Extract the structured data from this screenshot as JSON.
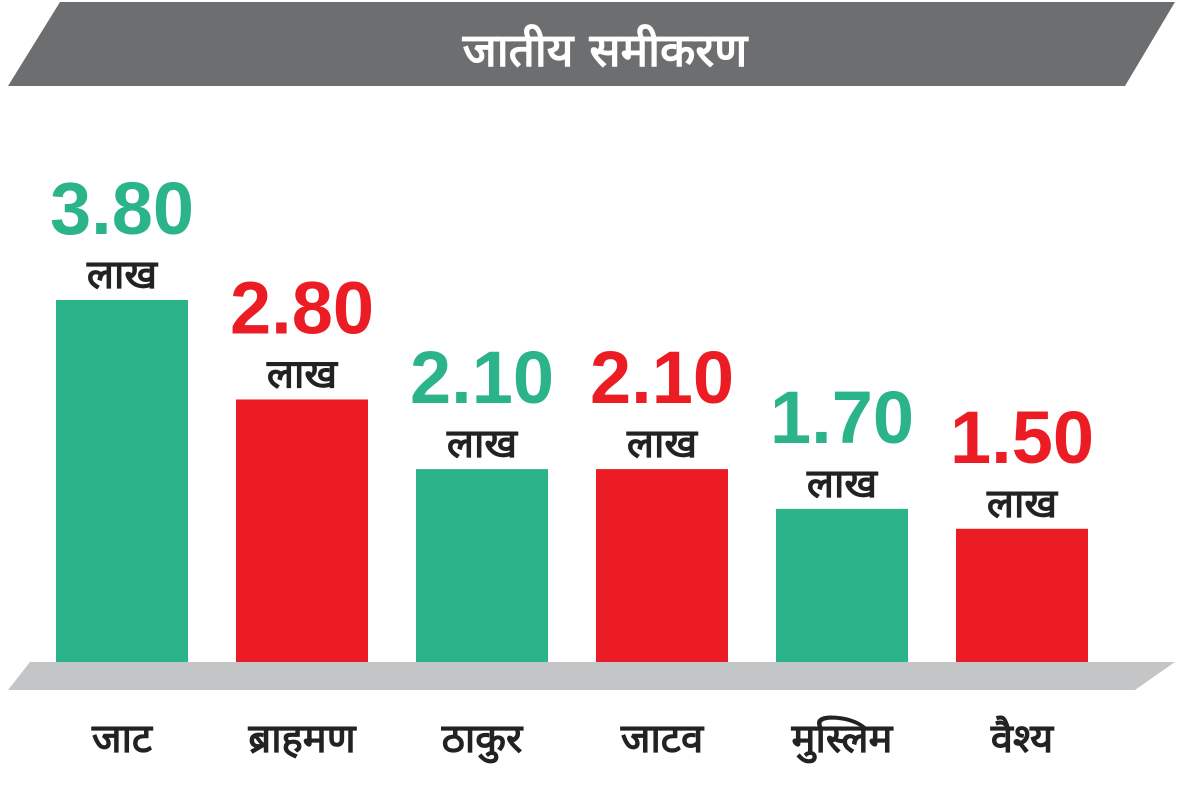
{
  "chart_data": {
    "type": "bar",
    "title": "जातीय समीकरण",
    "categories": [
      "जाट",
      "ब्राहमण",
      "ठाकुर",
      "जाटव",
      "मुस्लिम",
      "वैश्य"
    ],
    "values": [
      3.8,
      2.8,
      2.1,
      2.1,
      1.7,
      1.5
    ],
    "value_labels": [
      "3.80",
      "2.80",
      "2.10",
      "2.10",
      "1.70",
      "1.50"
    ],
    "unit": "लाख",
    "bar_colors": [
      "#2bb38a",
      "#ec1c24",
      "#2bb38a",
      "#ec1c24",
      "#2bb38a",
      "#ec1c24"
    ],
    "banner_color": "#6d6e70",
    "base_color": "#c4c5c7",
    "grid": false,
    "legend": "none"
  }
}
